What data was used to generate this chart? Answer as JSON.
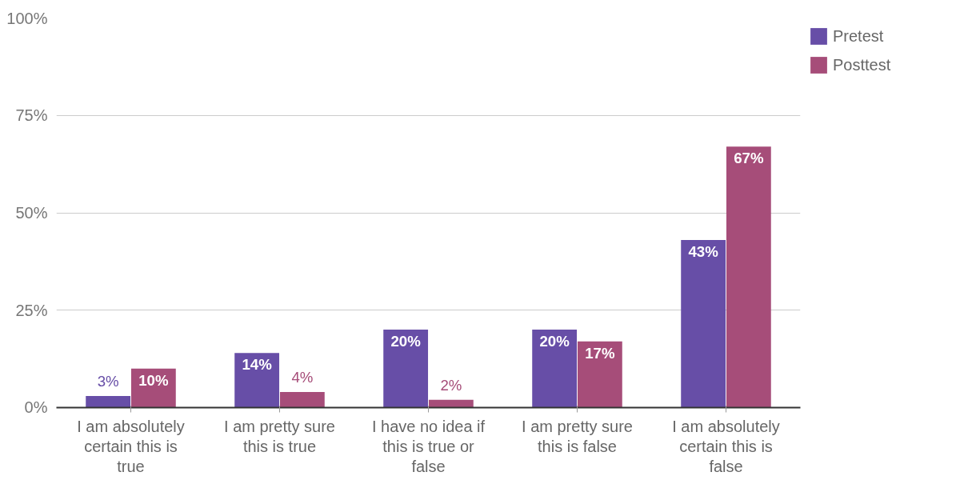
{
  "chart_data": {
    "type": "bar",
    "categories": [
      "I am absolutely certain this is true",
      "I am pretty sure this is true",
      "I have no idea if this is true or false",
      "I am pretty sure this is false",
      "I am absolutely certain this is false"
    ],
    "series": [
      {
        "name": "Pretest",
        "color": "#674ea7",
        "values": [
          3,
          14,
          20,
          20,
          43
        ],
        "value_labels": [
          "3%",
          "14%",
          "20%",
          "20%",
          "43%"
        ]
      },
      {
        "name": "Posttest",
        "color": "#a64d79",
        "values": [
          10,
          4,
          2,
          17,
          67
        ],
        "value_labels": [
          "10%",
          "4%",
          "2%",
          "17%",
          "67%"
        ]
      }
    ],
    "ylim": [
      0,
      100
    ],
    "yticks": [
      {
        "value": 0,
        "label": "0%"
      },
      {
        "value": 25,
        "label": "25%"
      },
      {
        "value": 50,
        "label": "50%"
      },
      {
        "value": 75,
        "label": "75%"
      },
      {
        "value": 100,
        "label": "100%"
      }
    ],
    "grid": "y",
    "legend": "top right"
  }
}
